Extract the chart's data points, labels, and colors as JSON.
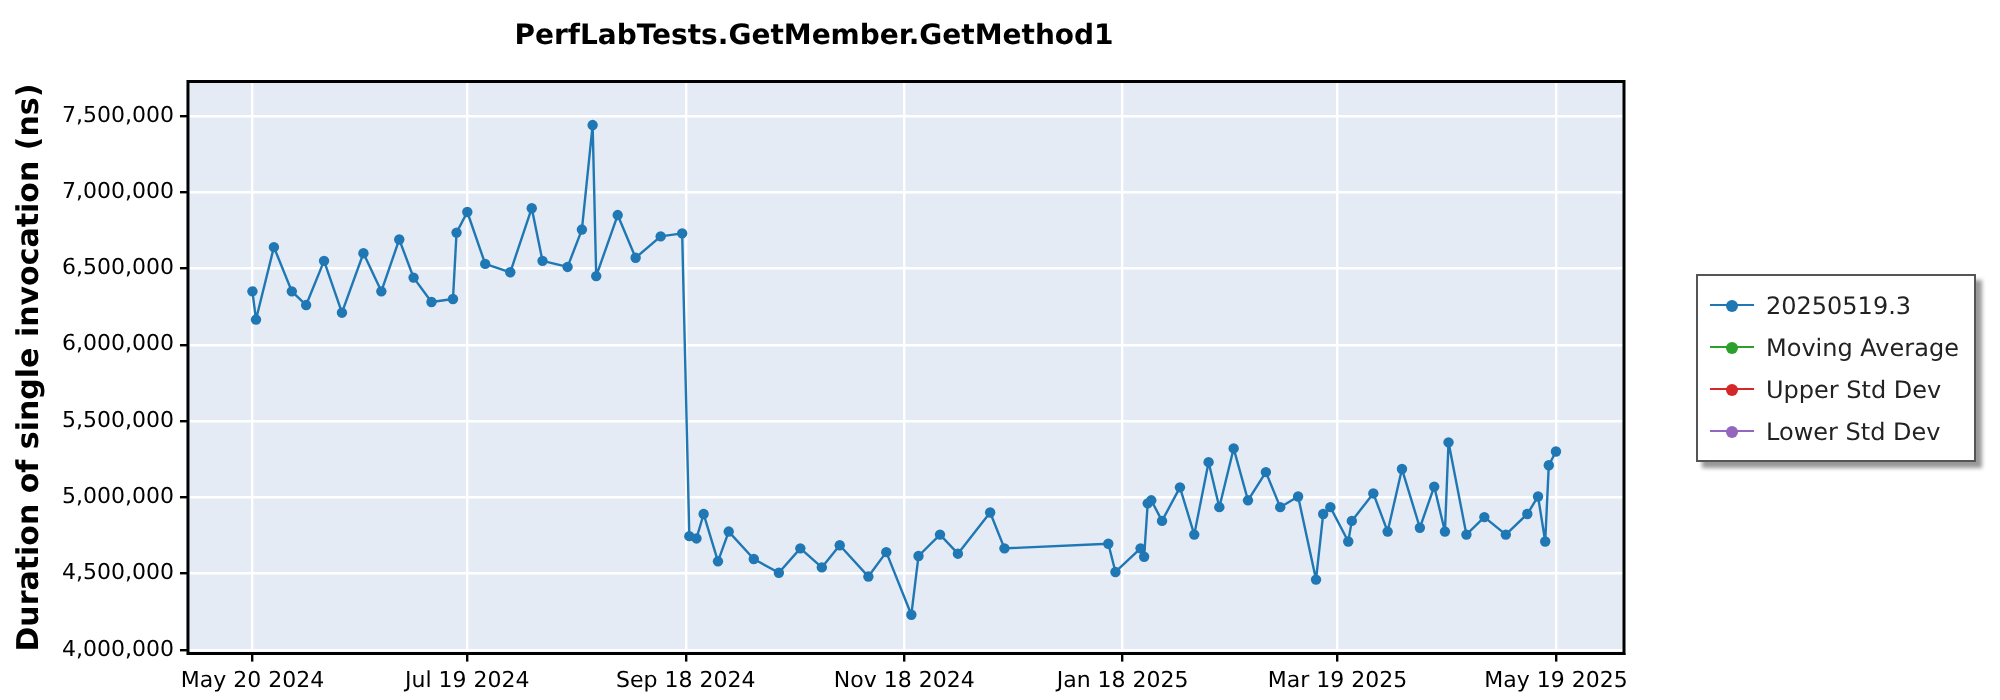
{
  "chart_data": {
    "type": "line",
    "title": "PerfLabTests.GetMember.GetMethod1",
    "ylabel": "Duration of single invocation (ns)",
    "x": [
      "2024-05-20",
      "2024-05-21",
      "2024-05-26",
      "2024-05-31",
      "2024-06-04",
      "2024-06-09",
      "2024-06-14",
      "2024-06-20",
      "2024-06-25",
      "2024-06-30",
      "2024-07-04",
      "2024-07-09",
      "2024-07-15",
      "2024-07-16",
      "2024-07-19",
      "2024-07-24",
      "2024-07-31",
      "2024-08-06",
      "2024-08-09",
      "2024-08-16",
      "2024-08-20",
      "2024-08-23",
      "2024-08-24",
      "2024-08-30",
      "2024-09-04",
      "2024-09-11",
      "2024-09-17",
      "2024-09-19",
      "2024-09-21",
      "2024-09-23",
      "2024-09-27",
      "2024-09-30",
      "2024-10-07",
      "2024-10-14",
      "2024-10-20",
      "2024-10-26",
      "2024-10-31",
      "2024-11-08",
      "2024-11-13",
      "2024-11-20",
      "2024-11-22",
      "2024-11-28",
      "2024-12-03",
      "2024-12-12",
      "2024-12-16",
      "2025-01-14",
      "2025-01-16",
      "2025-01-23",
      "2025-01-24",
      "2025-01-25",
      "2025-01-26",
      "2025-01-29",
      "2025-02-03",
      "2025-02-07",
      "2025-02-11",
      "2025-02-14",
      "2025-02-18",
      "2025-02-22",
      "2025-02-27",
      "2025-03-03",
      "2025-03-08",
      "2025-03-13",
      "2025-03-15",
      "2025-03-17",
      "2025-03-22",
      "2025-03-23",
      "2025-03-29",
      "2025-04-02",
      "2025-04-06",
      "2025-04-11",
      "2025-04-15",
      "2025-04-18",
      "2025-04-19",
      "2025-04-24",
      "2025-04-29",
      "2025-05-05",
      "2025-05-11",
      "2025-05-14",
      "2025-05-16",
      "2025-05-17",
      "2025-05-19"
    ],
    "series": [
      {
        "name": "20250519.3",
        "color": "#1f77b4",
        "values": [
          6350000,
          6165000,
          6640000,
          6350000,
          6260000,
          6550000,
          6210000,
          6600000,
          6350000,
          6690000,
          6440000,
          6280000,
          6300000,
          6735000,
          6870000,
          6530000,
          6475000,
          6895000,
          6550000,
          6510000,
          6755000,
          7440000,
          6450000,
          6850000,
          6570000,
          6710000,
          6730000,
          4745000,
          4730000,
          4890000,
          4580000,
          4775000,
          4595000,
          4505000,
          4665000,
          4540000,
          4685000,
          4480000,
          4640000,
          4230000,
          4615000,
          4755000,
          4630000,
          4900000,
          4665000,
          4695000,
          4510000,
          4665000,
          4610000,
          4960000,
          4980000,
          4845000,
          5065000,
          4755000,
          5230000,
          4935000,
          5320000,
          4980000,
          5165000,
          4935000,
          5005000,
          4460000,
          4890000,
          4935000,
          4710000,
          4845000,
          5025000,
          4775000,
          5185000,
          4800000,
          5070000,
          4775000,
          5360000,
          4755000,
          4870000,
          4755000,
          4890000,
          5005000,
          4710000,
          5210000,
          5300000
        ]
      },
      {
        "name": "Moving Average",
        "color": "#2ca02c",
        "values": [
          null,
          null,
          null,
          null,
          null,
          null,
          null,
          null,
          null,
          null,
          null,
          null,
          null,
          null,
          null,
          null,
          null,
          null,
          null,
          null,
          null,
          null,
          null,
          null,
          null,
          null,
          null,
          null,
          null,
          null,
          null,
          null,
          null,
          null,
          null,
          null,
          null,
          null,
          null,
          null,
          null,
          null,
          null,
          null,
          null,
          null,
          null,
          null,
          null,
          null,
          null,
          null,
          null,
          null,
          null,
          null,
          null,
          null,
          null,
          null,
          null,
          null,
          null,
          null,
          null,
          null,
          null,
          null,
          null,
          null,
          null,
          null,
          null,
          null,
          null,
          null,
          null,
          null,
          null,
          null,
          null
        ]
      },
      {
        "name": "Upper Std Dev",
        "color": "#d62728",
        "values": [
          null,
          null,
          null,
          null,
          null,
          null,
          null,
          null,
          null,
          null,
          null,
          null,
          null,
          null,
          null,
          null,
          null,
          null,
          null,
          null,
          null,
          null,
          null,
          null,
          null,
          null,
          null,
          null,
          null,
          null,
          null,
          null,
          null,
          null,
          null,
          null,
          null,
          null,
          null,
          null,
          null,
          null,
          null,
          null,
          null,
          null,
          null,
          null,
          null,
          null,
          null,
          null,
          null,
          null,
          null,
          null,
          null,
          null,
          null,
          null,
          null,
          null,
          null,
          null,
          null,
          null,
          null,
          null,
          null,
          null,
          null,
          null,
          null,
          null,
          null,
          null,
          null,
          null,
          null,
          null,
          null
        ]
      },
      {
        "name": "Lower Std Dev",
        "color": "#9467bd",
        "values": [
          null,
          null,
          null,
          null,
          null,
          null,
          null,
          null,
          null,
          null,
          null,
          null,
          null,
          null,
          null,
          null,
          null,
          null,
          null,
          null,
          null,
          null,
          null,
          null,
          null,
          null,
          null,
          null,
          null,
          null,
          null,
          null,
          null,
          null,
          null,
          null,
          null,
          null,
          null,
          null,
          null,
          null,
          null,
          null,
          null,
          null,
          null,
          null,
          null,
          null,
          null,
          null,
          null,
          null,
          null,
          null,
          null,
          null,
          null,
          null,
          null,
          null,
          null,
          null,
          null,
          null,
          null,
          null,
          null,
          null,
          null,
          null,
          null,
          null,
          null,
          null,
          null,
          null,
          null,
          null,
          null
        ]
      }
    ],
    "xlim": [
      "2024-05-02",
      "2025-06-07"
    ],
    "xticks": [
      {
        "value": "2024-05-20",
        "label": "May 20 2024"
      },
      {
        "value": "2024-07-19",
        "label": "Jul 19 2024"
      },
      {
        "value": "2024-09-18",
        "label": "Sep 18 2024"
      },
      {
        "value": "2024-11-18",
        "label": "Nov 18 2024"
      },
      {
        "value": "2025-01-18",
        "label": "Jan 18 2025"
      },
      {
        "value": "2025-03-19",
        "label": "Mar 19 2025"
      },
      {
        "value": "2025-05-19",
        "label": "May 19 2025"
      }
    ],
    "ylim": [
      3975000,
      7725000
    ],
    "yticks": [
      {
        "value": 4000000,
        "label": "4,000,000"
      },
      {
        "value": 4500000,
        "label": "4,500,000"
      },
      {
        "value": 5000000,
        "label": "5,000,000"
      },
      {
        "value": 5500000,
        "label": "5,500,000"
      },
      {
        "value": 6000000,
        "label": "6,000,000"
      },
      {
        "value": 6500000,
        "label": "6,500,000"
      },
      {
        "value": 7000000,
        "label": "7,000,000"
      },
      {
        "value": 7500000,
        "label": "7,500,000"
      }
    ],
    "grid": true,
    "legend": "right",
    "marker": "circle",
    "line_style": "solid"
  }
}
